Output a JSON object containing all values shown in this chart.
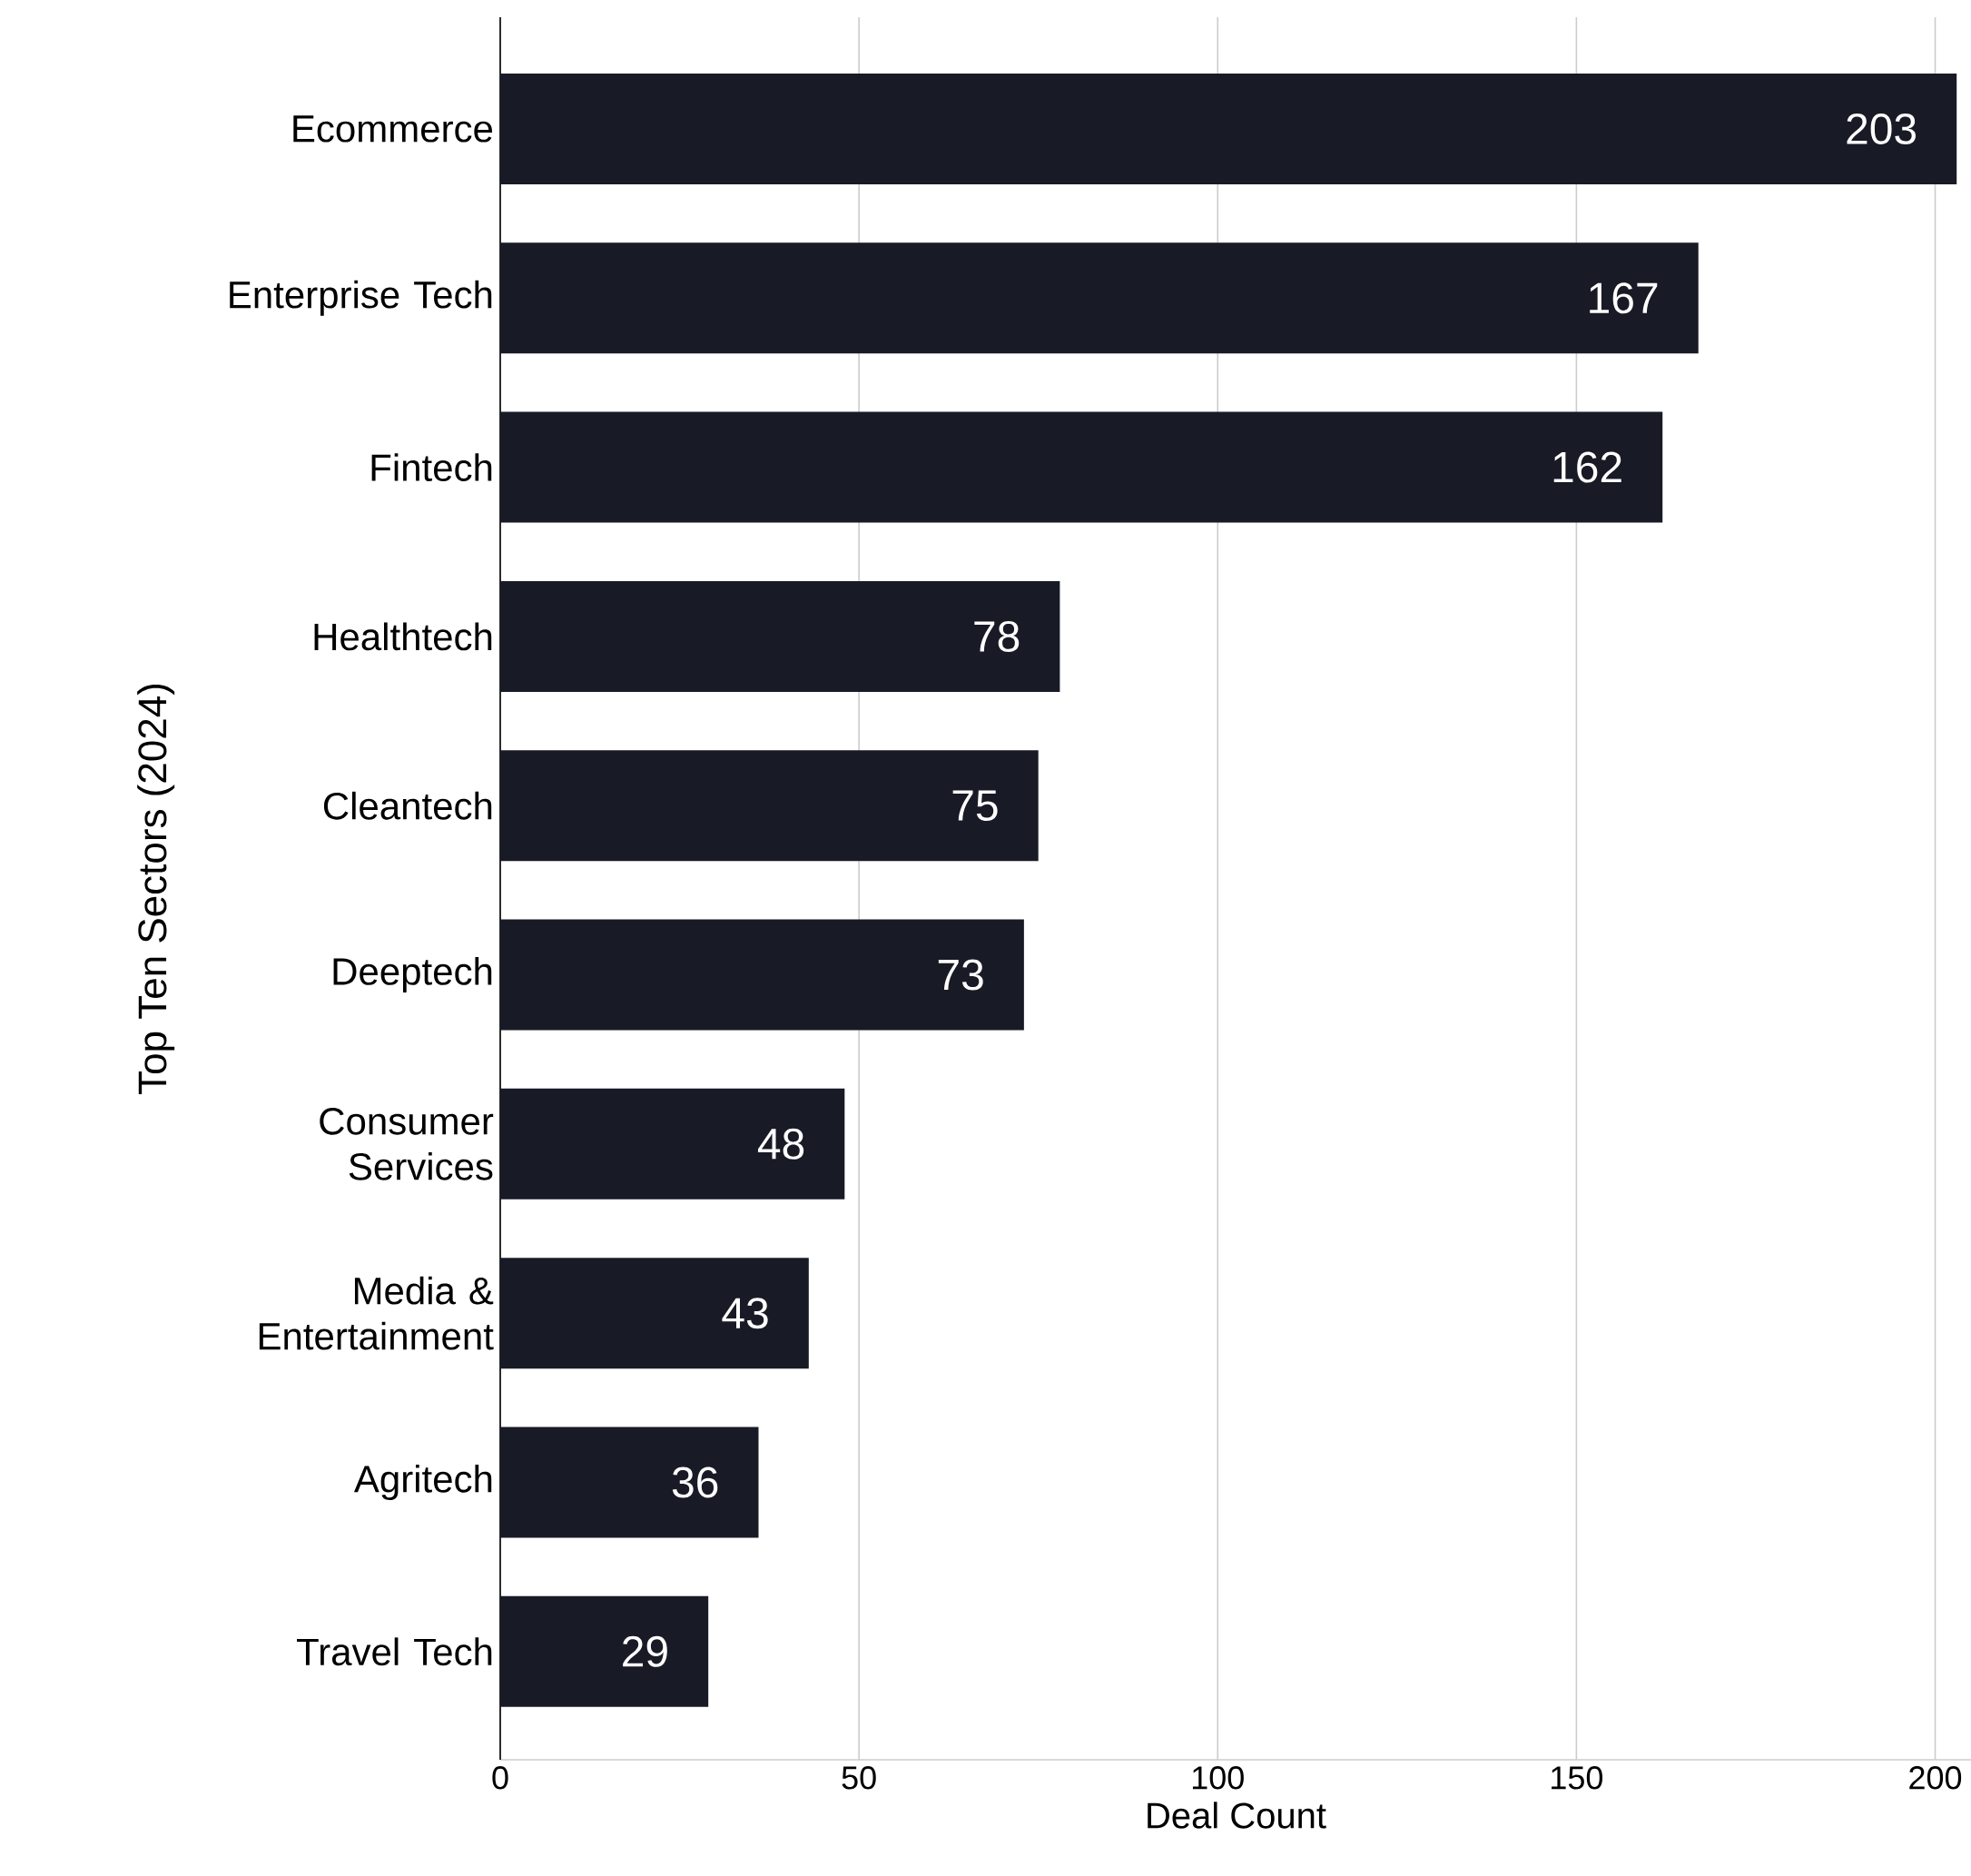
{
  "chart_data": {
    "type": "bar",
    "orientation": "horizontal",
    "xlabel": "Deal Count",
    "ylabel": "Top Ten Sectors (2024)",
    "categories": [
      "Ecommerce",
      "Enterprise Tech",
      "Fintech",
      "Healthtech",
      "Cleantech",
      "Deeptech",
      "Consumer Services",
      "Media & Entertainment",
      "Agritech",
      "Travel Tech"
    ],
    "values": [
      203,
      167,
      162,
      78,
      75,
      73,
      48,
      43,
      36,
      29
    ],
    "color": "#181b26",
    "data_labels": true,
    "xlim": [
      0,
      205
    ],
    "xticks": [
      0,
      50,
      100,
      150,
      200
    ],
    "grid": "x"
  }
}
